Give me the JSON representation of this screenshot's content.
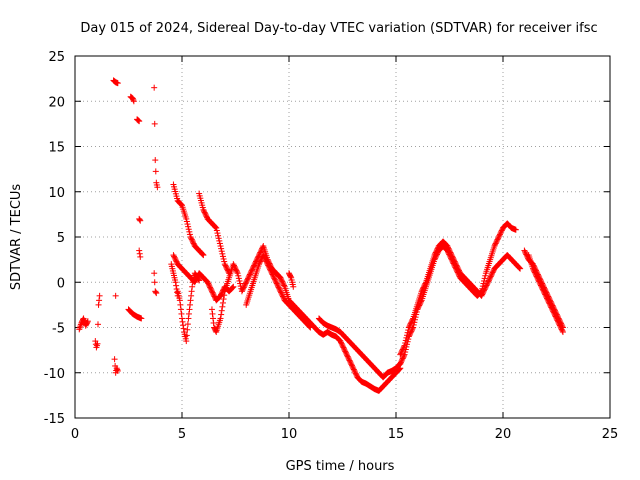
{
  "chart_data": {
    "type": "scatter",
    "title": "Day 015 of 2024, Sidereal Day-to-day VTEC variation (SDTVAR) for receiver ifsc",
    "xlabel": "GPS time / hours",
    "ylabel": "SDTVAR / TECUs",
    "xlim": [
      0,
      25
    ],
    "ylim": [
      -15,
      25
    ],
    "xticks": [
      0,
      5,
      10,
      15,
      20,
      25
    ],
    "yticks": [
      -15,
      -10,
      -5,
      0,
      5,
      10,
      15,
      20,
      25
    ],
    "grid": true,
    "marker": "+",
    "color": "#ff0000",
    "series": [
      {
        "name": "SDTVAR",
        "segments": [
          [
            [
              0.2,
              -5.2
            ],
            [
              0.3,
              -4.5
            ],
            [
              0.4,
              -4.0
            ],
            [
              0.5,
              -4.8
            ],
            [
              0.6,
              -4.3
            ]
          ],
          [
            [
              0.95,
              -6.5
            ],
            [
              1.0,
              -7.2
            ],
            [
              1.05,
              -6.8
            ],
            [
              1.1,
              -2.5
            ],
            [
              1.15,
              -1.5
            ]
          ],
          [
            [
              1.85,
              -8.5
            ],
            [
              1.9,
              -10.0
            ],
            [
              1.95,
              -9.5
            ],
            [
              2.0,
              -9.8
            ]
          ],
          [
            [
              1.8,
              22.3
            ],
            [
              1.9,
              22.1
            ],
            [
              2.0,
              22.0
            ]
          ],
          [
            [
              2.6,
              20.5
            ],
            [
              2.7,
              20.3
            ],
            [
              2.75,
              20.0
            ]
          ],
          [
            [
              2.9,
              18.0
            ],
            [
              3.0,
              17.8
            ]
          ],
          [
            [
              3.0,
              7.0
            ],
            [
              3.05,
              6.8
            ]
          ],
          [
            [
              3.0,
              3.5
            ],
            [
              3.05,
              2.8
            ]
          ],
          [
            [
              2.5,
              -3.0
            ],
            [
              2.7,
              -3.5
            ],
            [
              2.9,
              -3.8
            ],
            [
              3.1,
              -4.0
            ]
          ],
          [
            [
              1.9,
              -1.5
            ]
          ],
          [
            [
              3.7,
              21.5
            ],
            [
              3.75,
              13.5
            ],
            [
              3.8,
              11.0
            ],
            [
              3.85,
              10.5
            ]
          ],
          [
            [
              3.7,
              1.0
            ],
            [
              3.75,
              -1.0
            ],
            [
              3.8,
              -1.2
            ]
          ],
          [
            [
              4.6,
              10.8
            ],
            [
              4.8,
              9.0
            ],
            [
              5.0,
              8.5
            ],
            [
              5.2,
              7.0
            ],
            [
              5.4,
              5.0
            ],
            [
              5.6,
              4.0
            ],
            [
              5.8,
              3.5
            ],
            [
              6.0,
              3.0
            ]
          ],
          [
            [
              4.6,
              3.0
            ],
            [
              4.8,
              2.0
            ],
            [
              5.0,
              1.5
            ],
            [
              5.2,
              1.0
            ],
            [
              5.4,
              0.5
            ],
            [
              5.6,
              0.0
            ],
            [
              5.8,
              1.0
            ],
            [
              6.0,
              0.5
            ],
            [
              6.2,
              0.0
            ],
            [
              6.4,
              -1.0
            ],
            [
              6.6,
              -2.0
            ],
            [
              6.8,
              -1.5
            ],
            [
              7.0,
              -0.5
            ],
            [
              7.2,
              -1.0
            ],
            [
              7.4,
              -0.5
            ]
          ],
          [
            [
              4.8,
              -1.0
            ],
            [
              4.9,
              -2.0
            ],
            [
              5.0,
              -4.0
            ],
            [
              5.1,
              -5.5
            ],
            [
              5.2,
              -6.5
            ],
            [
              5.3,
              -4.0
            ],
            [
              5.4,
              -2.0
            ],
            [
              5.5,
              0.0
            ],
            [
              5.6,
              1.0
            ],
            [
              5.8,
              0.2
            ]
          ],
          [
            [
              5.8,
              9.8
            ],
            [
              6.0,
              8.0
            ],
            [
              6.2,
              7.0
            ],
            [
              6.4,
              6.5
            ],
            [
              6.6,
              6.0
            ],
            [
              6.8,
              4.0
            ],
            [
              7.0,
              2.0
            ],
            [
              7.2,
              1.0
            ]
          ],
          [
            [
              6.4,
              -3.0
            ],
            [
              6.5,
              -5.0
            ],
            [
              6.6,
              -5.5
            ],
            [
              6.8,
              -4.0
            ],
            [
              7.0,
              -1.0
            ],
            [
              7.2,
              0.5
            ],
            [
              7.4,
              2.0
            ],
            [
              7.6,
              1.0
            ],
            [
              7.8,
              -1.0
            ],
            [
              8.0,
              0.0
            ],
            [
              8.2,
              1.0
            ],
            [
              8.4,
              2.0
            ],
            [
              8.6,
              3.0
            ],
            [
              8.8,
              4.0
            ],
            [
              9.0,
              2.5
            ],
            [
              9.2,
              1.5
            ],
            [
              9.4,
              1.0
            ],
            [
              9.6,
              0.5
            ],
            [
              9.8,
              -0.5
            ],
            [
              10.0,
              -2.0
            ],
            [
              10.2,
              -2.5
            ],
            [
              10.4,
              -3.0
            ],
            [
              10.6,
              -3.5
            ],
            [
              10.8,
              -4.0
            ],
            [
              11.0,
              -4.5
            ],
            [
              11.2,
              -5.0
            ],
            [
              11.4,
              -5.5
            ]
          ],
          [
            [
              8.0,
              -2.5
            ],
            [
              8.2,
              -1.0
            ],
            [
              8.4,
              0.5
            ],
            [
              8.6,
              2.0
            ],
            [
              8.8,
              3.0
            ],
            [
              9.0,
              2.0
            ],
            [
              9.2,
              1.0
            ],
            [
              9.4,
              0.0
            ],
            [
              9.6,
              -1.0
            ],
            [
              9.8,
              -2.0
            ],
            [
              10.0,
              -2.5
            ],
            [
              10.2,
              -3.0
            ],
            [
              10.4,
              -3.5
            ],
            [
              10.6,
              -4.0
            ],
            [
              10.8,
              -4.5
            ],
            [
              11.0,
              -5.0
            ]
          ],
          [
            [
              10.0,
              1.0
            ],
            [
              10.1,
              0.5
            ],
            [
              10.2,
              -0.5
            ]
          ],
          [
            [
              11.4,
              -4.0
            ],
            [
              11.6,
              -4.5
            ],
            [
              11.8,
              -4.8
            ],
            [
              12.0,
              -5.0
            ],
            [
              12.2,
              -5.2
            ],
            [
              12.4,
              -5.5
            ],
            [
              12.6,
              -6.0
            ],
            [
              12.8,
              -6.5
            ],
            [
              13.0,
              -7.0
            ],
            [
              13.2,
              -7.5
            ],
            [
              13.4,
              -8.0
            ],
            [
              13.6,
              -8.5
            ],
            [
              13.8,
              -9.0
            ],
            [
              14.0,
              -9.5
            ],
            [
              14.2,
              -10.0
            ],
            [
              14.4,
              -10.5
            ],
            [
              14.6,
              -10.0
            ],
            [
              14.8,
              -9.8
            ],
            [
              15.0,
              -9.5
            ],
            [
              15.2,
              -9.0
            ]
          ],
          [
            [
              11.4,
              -5.5
            ],
            [
              11.6,
              -5.8
            ],
            [
              11.8,
              -5.5
            ],
            [
              12.0,
              -5.8
            ],
            [
              12.2,
              -6.0
            ],
            [
              12.4,
              -6.5
            ],
            [
              12.6,
              -7.5
            ],
            [
              12.8,
              -8.5
            ],
            [
              13.0,
              -9.5
            ],
            [
              13.2,
              -10.5
            ],
            [
              13.4,
              -11.0
            ],
            [
              13.6,
              -11.2
            ],
            [
              13.8,
              -11.5
            ],
            [
              14.0,
              -11.8
            ],
            [
              14.2,
              -12.0
            ],
            [
              14.4,
              -11.5
            ],
            [
              14.6,
              -11.0
            ],
            [
              14.8,
              -10.5
            ],
            [
              15.0,
              -10.0
            ],
            [
              15.2,
              -9.5
            ]
          ],
          [
            [
              15.2,
              -8.0
            ],
            [
              15.4,
              -7.0
            ],
            [
              15.6,
              -5.0
            ],
            [
              15.8,
              -4.0
            ],
            [
              16.0,
              -2.5
            ],
            [
              16.2,
              -1.0
            ],
            [
              16.4,
              0.0
            ],
            [
              16.6,
              1.5
            ],
            [
              16.8,
              3.0
            ],
            [
              17.0,
              4.0
            ],
            [
              17.2,
              4.5
            ],
            [
              17.4,
              4.0
            ],
            [
              17.6,
              3.0
            ],
            [
              17.8,
              2.0
            ],
            [
              18.0,
              1.0
            ],
            [
              18.2,
              0.5
            ],
            [
              18.4,
              0.0
            ],
            [
              18.6,
              -0.5
            ],
            [
              18.8,
              -1.0
            ],
            [
              19.0,
              -1.5
            ],
            [
              19.2,
              -0.5
            ],
            [
              19.4,
              0.5
            ],
            [
              19.6,
              1.5
            ],
            [
              19.8,
              2.0
            ],
            [
              20.0,
              2.5
            ],
            [
              20.2,
              3.0
            ],
            [
              20.4,
              2.5
            ],
            [
              20.6,
              2.0
            ],
            [
              20.8,
              1.5
            ]
          ],
          [
            [
              15.2,
              -9.0
            ],
            [
              15.4,
              -8.0
            ],
            [
              15.6,
              -6.0
            ],
            [
              15.8,
              -5.0
            ],
            [
              16.0,
              -3.0
            ],
            [
              16.2,
              -2.0
            ],
            [
              16.4,
              -0.5
            ],
            [
              16.6,
              1.0
            ],
            [
              16.8,
              2.5
            ],
            [
              17.0,
              3.5
            ],
            [
              17.2,
              4.0
            ],
            [
              17.4,
              3.5
            ],
            [
              17.6,
              2.5
            ],
            [
              17.8,
              1.5
            ],
            [
              18.0,
              0.5
            ],
            [
              18.2,
              0.0
            ],
            [
              18.4,
              -0.5
            ],
            [
              18.6,
              -1.0
            ],
            [
              18.8,
              -1.5
            ],
            [
              19.0,
              -1.0
            ],
            [
              19.2,
              1.0
            ],
            [
              19.4,
              2.5
            ],
            [
              19.6,
              4.0
            ],
            [
              19.8,
              5.0
            ],
            [
              20.0,
              6.0
            ],
            [
              20.2,
              6.5
            ],
            [
              20.4,
              6.0
            ],
            [
              20.6,
              5.8
            ]
          ],
          [
            [
              21.0,
              3.5
            ],
            [
              21.2,
              2.5
            ],
            [
              21.4,
              2.0
            ],
            [
              21.6,
              1.0
            ],
            [
              21.8,
              0.0
            ],
            [
              22.0,
              -1.0
            ],
            [
              22.2,
              -2.0
            ],
            [
              22.4,
              -3.0
            ],
            [
              22.6,
              -4.0
            ],
            [
              22.8,
              -5.0
            ]
          ],
          [
            [
              21.2,
              3.0
            ],
            [
              21.4,
              1.5
            ],
            [
              21.6,
              0.5
            ],
            [
              21.8,
              -0.5
            ],
            [
              22.0,
              -1.5
            ],
            [
              22.2,
              -2.5
            ],
            [
              22.4,
              -3.5
            ],
            [
              22.6,
              -4.5
            ],
            [
              22.8,
              -5.5
            ]
          ],
          [
            [
              4.5,
              2.0
            ],
            [
              4.6,
              1.0
            ],
            [
              4.7,
              0.0
            ],
            [
              4.8,
              -1.5
            ]
          ]
        ]
      }
    ]
  }
}
